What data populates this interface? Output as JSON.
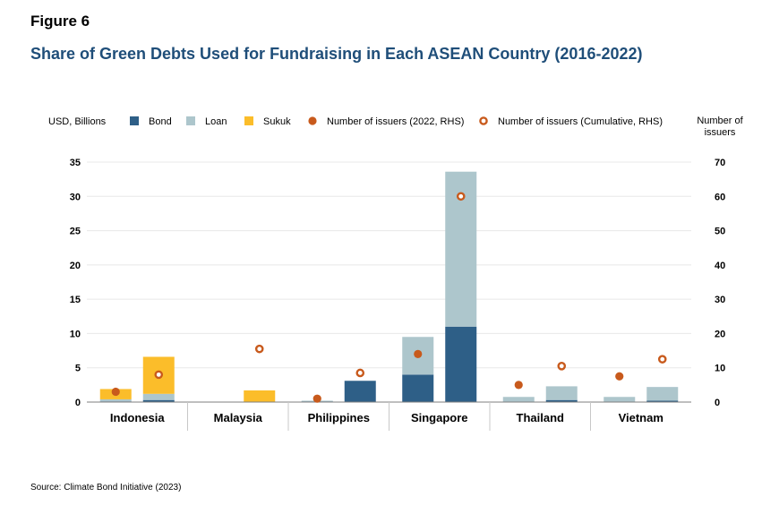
{
  "figure_label": "Figure 6",
  "title": "Share of Green Debts Used for Fundraising in Each ASEAN Country (2016-2022)",
  "source": "Source: Climate Bond Initiative (2023)",
  "colors": {
    "bond": "#2e5f87",
    "loan": "#adc6cc",
    "sukuk": "#fbbd2a",
    "issuers": "#c85a1c",
    "title": "#1f4e79"
  },
  "chart_data": {
    "type": "bar",
    "title": "Share of Green Debts Used for Fundraising in Each ASEAN Country (2016-2022)",
    "ylabel": "USD, Billions",
    "y2label": "Number of issuers",
    "ylim": [
      0,
      35
    ],
    "y2lim": [
      0,
      70
    ],
    "yticks": [
      0,
      5,
      10,
      15,
      20,
      25,
      30,
      35
    ],
    "y2ticks": [
      0,
      10,
      20,
      30,
      40,
      50,
      60,
      70
    ],
    "categories": [
      "Indonesia",
      "Malaysia",
      "Philippines",
      "Singapore",
      "Thailand",
      "Vietnam"
    ],
    "bar_periods": [
      "2022",
      "Cumulative"
    ],
    "grid": true,
    "legend_position": "top",
    "series": [
      {
        "name": "Bond",
        "kind": "stacked-bar",
        "values_2022": [
          0.1,
          0,
          0.1,
          4.0,
          0.05,
          0.05
        ],
        "values_cumulative": [
          0.3,
          0,
          3.1,
          11.0,
          0.3,
          0.2
        ]
      },
      {
        "name": "Loan",
        "kind": "stacked-bar",
        "values_2022": [
          0.3,
          0,
          0.1,
          5.5,
          0.7,
          0.7
        ],
        "values_cumulative": [
          0.9,
          0,
          0,
          22.6,
          2.0,
          2.0
        ]
      },
      {
        "name": "Sukuk",
        "kind": "stacked-bar",
        "values_2022": [
          1.5,
          0,
          0,
          0,
          0,
          0
        ],
        "values_cumulative": [
          5.4,
          1.7,
          0,
          0,
          0,
          0
        ]
      },
      {
        "name": "Number of issuers (2022, RHS)",
        "kind": "filled-dot",
        "axis": "right",
        "values": [
          3,
          null,
          1,
          14,
          5,
          7.5
        ]
      },
      {
        "name": "Number of issuers (Cumulative, RHS)",
        "kind": "hollow-dot",
        "axis": "right",
        "values": [
          8,
          15.5,
          8.5,
          60,
          10.5,
          12.5
        ]
      }
    ]
  }
}
